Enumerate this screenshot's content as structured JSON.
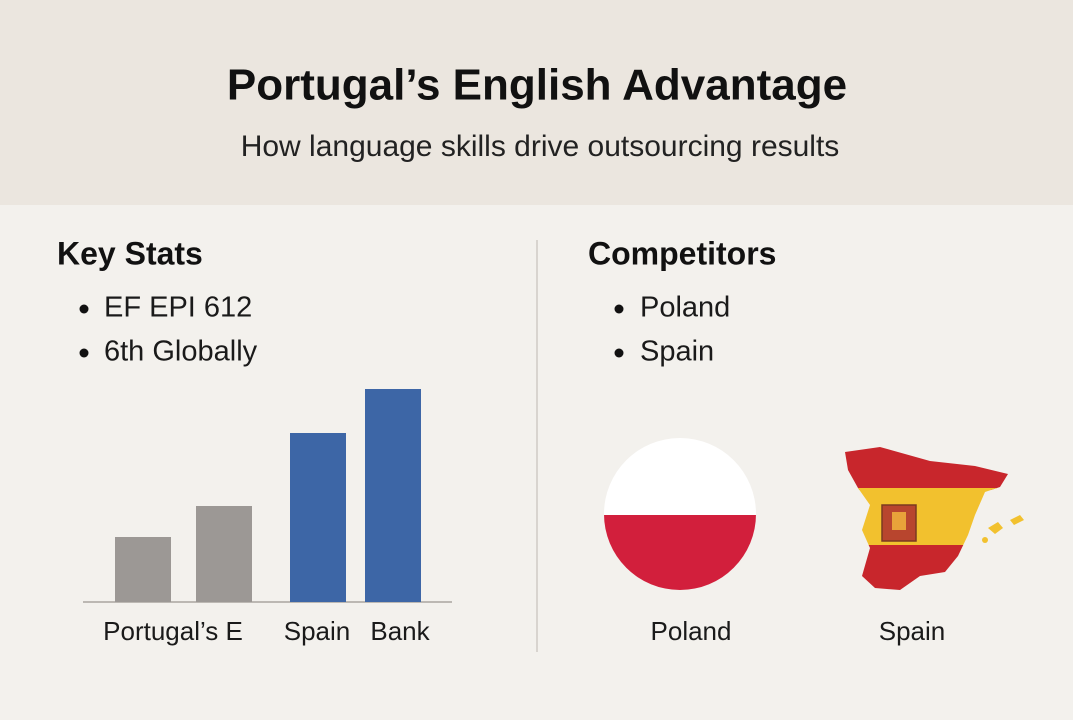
{
  "header": {
    "title": "Portugal’s English Advantage",
    "subtitle": "How language skills drive outsourcing results"
  },
  "key_stats": {
    "heading": "Key Stats",
    "items": [
      "EF EPI 612",
      "6th Globally"
    ]
  },
  "chart_data": {
    "type": "bar",
    "categories": [
      "Portugal’s E",
      null,
      "Spain",
      "Bank"
    ],
    "values": [
      65,
      96,
      169,
      213
    ],
    "colors": [
      "#9c9895",
      "#9c9895",
      "#3d66a6",
      "#3d66a6"
    ],
    "ylim": [
      0,
      222
    ]
  },
  "competitors": {
    "heading": "Competitors",
    "items": [
      "Poland",
      "Spain"
    ],
    "flags": [
      {
        "label": "Poland"
      },
      {
        "label": "Spain"
      }
    ]
  }
}
